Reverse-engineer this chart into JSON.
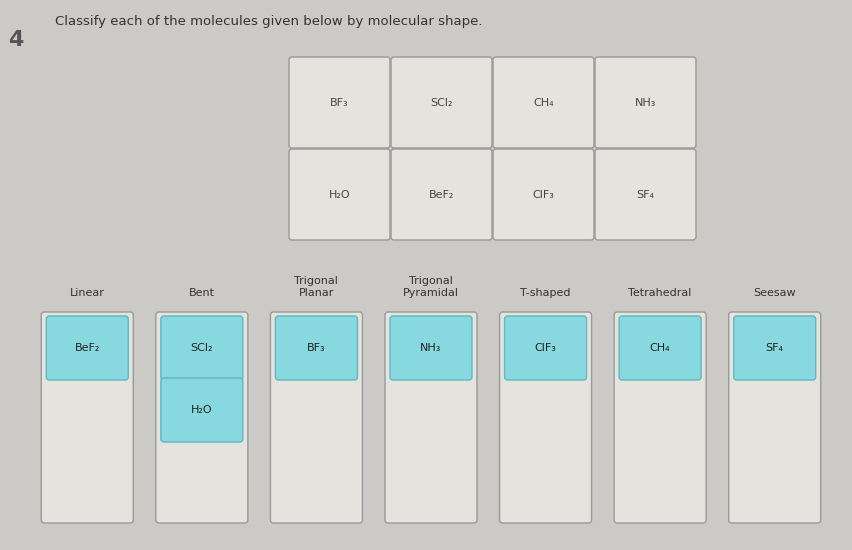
{
  "title": "Classify each of the molecules given below by molecular shape.",
  "title_fontsize": 9.5,
  "background_color": "#cccac6",
  "source_molecules": {
    "row1": [
      "BF₃",
      "SCl₂",
      "CH₄",
      "NH₃"
    ],
    "row2": [
      "H₂O",
      "BeF₂",
      "ClF₃",
      "SF₄"
    ]
  },
  "source_box_facecolor": "#e5e3de",
  "source_box_edgecolor": "#999999",
  "categories": [
    {
      "label": "Linear",
      "key": "Linear"
    },
    {
      "label": "Bent",
      "key": "Bent"
    },
    {
      "label": "Trigonal\nPlanar",
      "key": "Trigonal\nPlanar"
    },
    {
      "label": "Trigonal\nPyramidal",
      "key": "Trigonal\nPyramidal"
    },
    {
      "label": "T-shaped",
      "key": "T-shaped"
    },
    {
      "label": "Tetrahedral",
      "key": "Tetrahedral"
    },
    {
      "label": "Seesaw",
      "key": "Seesaw"
    }
  ],
  "placed_molecules": {
    "Linear": [
      "BeF₂"
    ],
    "Bent": [
      "SCl₂",
      "H₂O"
    ],
    "Trigonal\nPlanar": [
      "BF₃"
    ],
    "Trigonal\nPyramidal": [
      "NH₃"
    ],
    "T-shaped": [
      "ClF₃"
    ],
    "Tetrahedral": [
      "CH₄"
    ],
    "Seesaw": [
      "SF₄"
    ]
  },
  "placed_box_facecolor": "#88d8df",
  "placed_box_edgecolor": "#60b8c0",
  "cat_box_facecolor": "#e5e3de",
  "cat_box_edgecolor": "#999999",
  "mol_fontsize": 8,
  "category_label_fontsize": 8,
  "number_label": "4"
}
